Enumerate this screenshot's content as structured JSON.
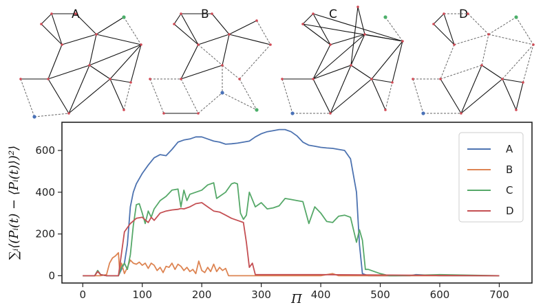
{
  "panels": [
    {
      "label": "A"
    },
    {
      "label": "B"
    },
    {
      "label": "C"
    },
    {
      "label": "D"
    }
  ],
  "chart_data": {
    "type": "line",
    "xlabel": "Π",
    "ylabel": "∑ᵢ⟨(Pᵢ(t) − ⟨Pᵢ(t)⟩)²⟩",
    "xlim": [
      -35,
      755
    ],
    "ylim": [
      -35,
      735
    ],
    "xticks": [
      0,
      100,
      200,
      300,
      400,
      500,
      600,
      700
    ],
    "yticks": [
      0,
      200,
      400,
      600
    ],
    "legend_position": "upper-right",
    "series": [
      {
        "name": "A",
        "color": "#4c72b0",
        "x": [
          0,
          20,
          25,
          30,
          40,
          60,
          65,
          70,
          75,
          80,
          85,
          90,
          100,
          110,
          120,
          130,
          140,
          150,
          160,
          170,
          180,
          190,
          200,
          210,
          220,
          230,
          240,
          250,
          260,
          270,
          280,
          290,
          300,
          310,
          320,
          330,
          340,
          350,
          360,
          370,
          380,
          390,
          400,
          410,
          420,
          430,
          440,
          450,
          460,
          465,
          470,
          480,
          490,
          500,
          550,
          560,
          600,
          700
        ],
        "y": [
          0,
          0,
          25,
          5,
          0,
          0,
          30,
          60,
          150,
          330,
          400,
          440,
          490,
          530,
          565,
          580,
          575,
          605,
          640,
          650,
          655,
          665,
          665,
          655,
          645,
          640,
          630,
          632,
          635,
          640,
          645,
          665,
          680,
          690,
          695,
          700,
          700,
          690,
          670,
          640,
          625,
          620,
          615,
          612,
          610,
          605,
          600,
          560,
          400,
          150,
          10,
          0,
          0,
          0,
          0,
          5,
          0,
          0
        ]
      },
      {
        "name": "B",
        "color": "#dd8452",
        "x": [
          0,
          20,
          30,
          40,
          45,
          50,
          55,
          60,
          62,
          65,
          70,
          75,
          80,
          85,
          90,
          95,
          100,
          105,
          110,
          115,
          120,
          125,
          130,
          135,
          140,
          145,
          150,
          155,
          160,
          165,
          170,
          175,
          180,
          185,
          190,
          195,
          200,
          205,
          210,
          215,
          220,
          225,
          230,
          235,
          240,
          245,
          250,
          300,
          400,
          410,
          420,
          430,
          500,
          700
        ],
        "y": [
          0,
          0,
          0,
          5,
          60,
          85,
          95,
          110,
          20,
          60,
          10,
          40,
          75,
          60,
          55,
          65,
          50,
          60,
          35,
          60,
          50,
          25,
          40,
          15,
          45,
          40,
          60,
          30,
          55,
          45,
          25,
          40,
          20,
          30,
          10,
          70,
          25,
          15,
          40,
          20,
          55,
          20,
          40,
          25,
          35,
          0,
          0,
          0,
          0,
          5,
          10,
          0,
          0,
          0
        ]
      },
      {
        "name": "C",
        "color": "#55a868",
        "x": [
          0,
          20,
          25,
          30,
          40,
          50,
          60,
          65,
          70,
          75,
          80,
          85,
          90,
          95,
          100,
          105,
          110,
          115,
          120,
          130,
          140,
          150,
          160,
          165,
          170,
          175,
          180,
          190,
          200,
          210,
          220,
          225,
          230,
          240,
          250,
          255,
          260,
          265,
          270,
          275,
          280,
          290,
          300,
          310,
          320,
          330,
          340,
          350,
          360,
          370,
          380,
          390,
          400,
          410,
          420,
          425,
          430,
          440,
          450,
          460,
          465,
          470,
          475,
          480,
          490,
          500,
          515,
          520,
          525,
          600,
          700
        ],
        "y": [
          0,
          0,
          25,
          5,
          0,
          0,
          0,
          40,
          60,
          30,
          100,
          240,
          340,
          345,
          300,
          250,
          310,
          280,
          320,
          360,
          380,
          410,
          415,
          330,
          410,
          360,
          390,
          400,
          410,
          435,
          445,
          370,
          380,
          400,
          440,
          445,
          440,
          300,
          270,
          290,
          400,
          330,
          350,
          320,
          325,
          335,
          370,
          365,
          360,
          355,
          250,
          330,
          300,
          260,
          255,
          270,
          285,
          290,
          280,
          160,
          220,
          170,
          30,
          30,
          20,
          10,
          0,
          0,
          0,
          5,
          0
        ]
      },
      {
        "name": "D",
        "color": "#c44e52",
        "x": [
          0,
          20,
          25,
          30,
          40,
          60,
          70,
          80,
          90,
          100,
          110,
          115,
          120,
          130,
          140,
          150,
          160,
          165,
          170,
          180,
          190,
          200,
          210,
          220,
          230,
          240,
          250,
          260,
          270,
          275,
          280,
          285,
          290,
          300,
          400,
          700
        ],
        "y": [
          0,
          0,
          20,
          5,
          0,
          0,
          210,
          250,
          275,
          280,
          255,
          280,
          265,
          300,
          310,
          315,
          318,
          322,
          320,
          330,
          345,
          350,
          330,
          310,
          305,
          290,
          275,
          265,
          255,
          160,
          40,
          60,
          5,
          5,
          5,
          0
        ]
      }
    ]
  }
}
